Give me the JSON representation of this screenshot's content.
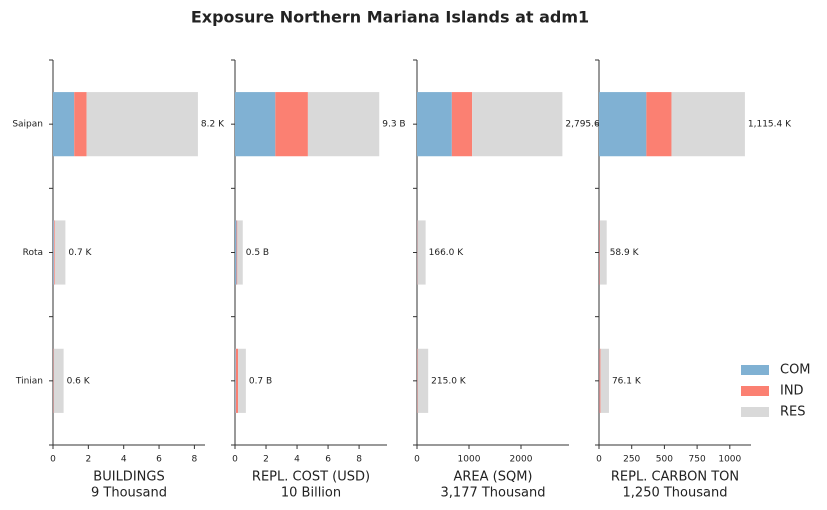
{
  "title": "Exposure Northern Mariana Islands at adm1",
  "legend": "lower right",
  "chart_data": [
    {
      "type": "barh",
      "categories": [
        "Saipan",
        "Rota",
        "Tinian"
      ],
      "show_categories": true,
      "xlabel": "BUILDINGS",
      "xlabel_note": "9 Thousand",
      "xlim": [
        0,
        8.6
      ],
      "xticks": [
        0,
        2,
        4,
        6,
        8
      ],
      "series": [
        {
          "name": "COM",
          "color": "#80b1d3",
          "values": [
            1.2,
            0.05,
            0.02
          ]
        },
        {
          "name": "IND",
          "color": "#fb8072",
          "values": [
            0.7,
            0.05,
            0.03
          ]
        },
        {
          "name": "RES",
          "color": "#d9d9d9",
          "values": [
            6.3,
            0.6,
            0.55
          ]
        }
      ],
      "totals": [
        8.2,
        0.7,
        0.6
      ],
      "value_labels": [
        "8.2 K",
        "0.7 K",
        "0.6 K"
      ]
    },
    {
      "type": "barh",
      "categories": [
        "Saipan",
        "Rota",
        "Tinian"
      ],
      "show_categories": false,
      "xlabel": "REPL. COST (USD)",
      "xlabel_note": "10 Billion",
      "xlim": [
        0,
        9.8
      ],
      "xticks": [
        0,
        2,
        4,
        6,
        8
      ],
      "series": [
        {
          "name": "COM",
          "color": "#80b1d3",
          "values": [
            2.6,
            0.1,
            0.05
          ]
        },
        {
          "name": "IND",
          "color": "#fb8072",
          "values": [
            2.1,
            0.05,
            0.15
          ]
        },
        {
          "name": "RES",
          "color": "#d9d9d9",
          "values": [
            4.6,
            0.35,
            0.5
          ]
        }
      ],
      "totals": [
        9.3,
        0.5,
        0.7
      ],
      "value_labels": [
        "9.3 B",
        "0.5 B",
        "0.7 B"
      ]
    },
    {
      "type": "barh",
      "categories": [
        "Saipan",
        "Rota",
        "Tinian"
      ],
      "show_categories": false,
      "xlabel": "AREA (SQM)",
      "xlabel_note": "3,177 Thousand",
      "xlim": [
        0,
        2923
      ],
      "xticks": [
        0,
        1000,
        2000
      ],
      "series": [
        {
          "name": "COM",
          "color": "#80b1d3",
          "values": [
            670,
            5,
            5
          ]
        },
        {
          "name": "IND",
          "color": "#fb8072",
          "values": [
            390,
            6,
            10
          ]
        },
        {
          "name": "RES",
          "color": "#d9d9d9",
          "values": [
            1735.6,
            155,
            200
          ]
        }
      ],
      "totals": [
        2795.6,
        166.0,
        215.0
      ],
      "value_labels": [
        "2,795.6",
        "166.0 K",
        "215.0 K"
      ]
    },
    {
      "type": "barh",
      "categories": [
        "Saipan",
        "Rota",
        "Tinian"
      ],
      "show_categories": false,
      "xlabel": "REPL. CARBON TON",
      "xlabel_note": "1,250 Thousand",
      "xlim": [
        0,
        1162
      ],
      "xticks": [
        0,
        250,
        500,
        750,
        1000
      ],
      "series": [
        {
          "name": "COM",
          "color": "#80b1d3",
          "values": [
            362,
            3,
            3
          ]
        },
        {
          "name": "IND",
          "color": "#fb8072",
          "values": [
            192,
            5,
            8
          ]
        },
        {
          "name": "RES",
          "color": "#d9d9d9",
          "values": [
            561.4,
            50.9,
            65.1
          ]
        }
      ],
      "totals": [
        1115.4,
        58.9,
        76.1
      ],
      "value_labels": [
        "1,115.4 K",
        "58.9 K",
        "76.1 K"
      ]
    }
  ]
}
